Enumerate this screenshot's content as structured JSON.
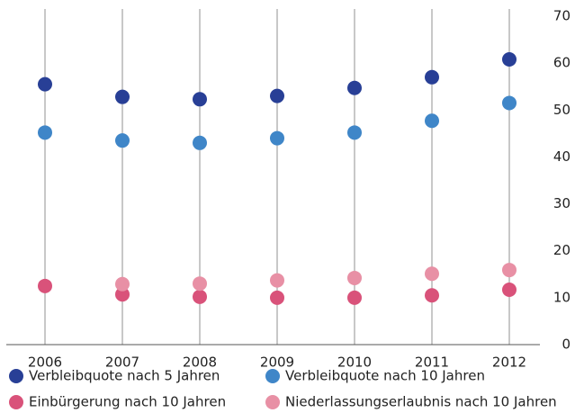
{
  "chart_data": {
    "type": "dot",
    "categories": [
      "2006",
      "2007",
      "2008",
      "2009",
      "2010",
      "2011",
      "2012"
    ],
    "series": [
      {
        "name": "Verbleibquote nach 5 Jahren",
        "color": "#283f96",
        "values": [
          55.5,
          52.8,
          52.3,
          53.0,
          54.7,
          57.0,
          60.8
        ]
      },
      {
        "name": "Verbleibquote nach 10 Jahren",
        "color": "#3f86c8",
        "values": [
          45.2,
          43.5,
          43.0,
          44.0,
          45.2,
          47.7,
          51.5
        ]
      },
      {
        "name": "Einbürgerung nach 10 Jahren",
        "color": "#d9527a",
        "values": [
          12.5,
          10.7,
          10.2,
          10.0,
          10.0,
          10.5,
          11.7
        ]
      },
      {
        "name": "Niederlassungserlaubnis nach 10 Jahren",
        "color": "#e890a5",
        "values": [
          null,
          12.9,
          13.0,
          13.7,
          14.2,
          15.1,
          15.9
        ]
      }
    ],
    "ylim": [
      0,
      70
    ],
    "yticks": [
      0,
      10,
      20,
      30,
      40,
      50,
      60,
      70
    ],
    "grid": true,
    "legend": "bottom"
  }
}
